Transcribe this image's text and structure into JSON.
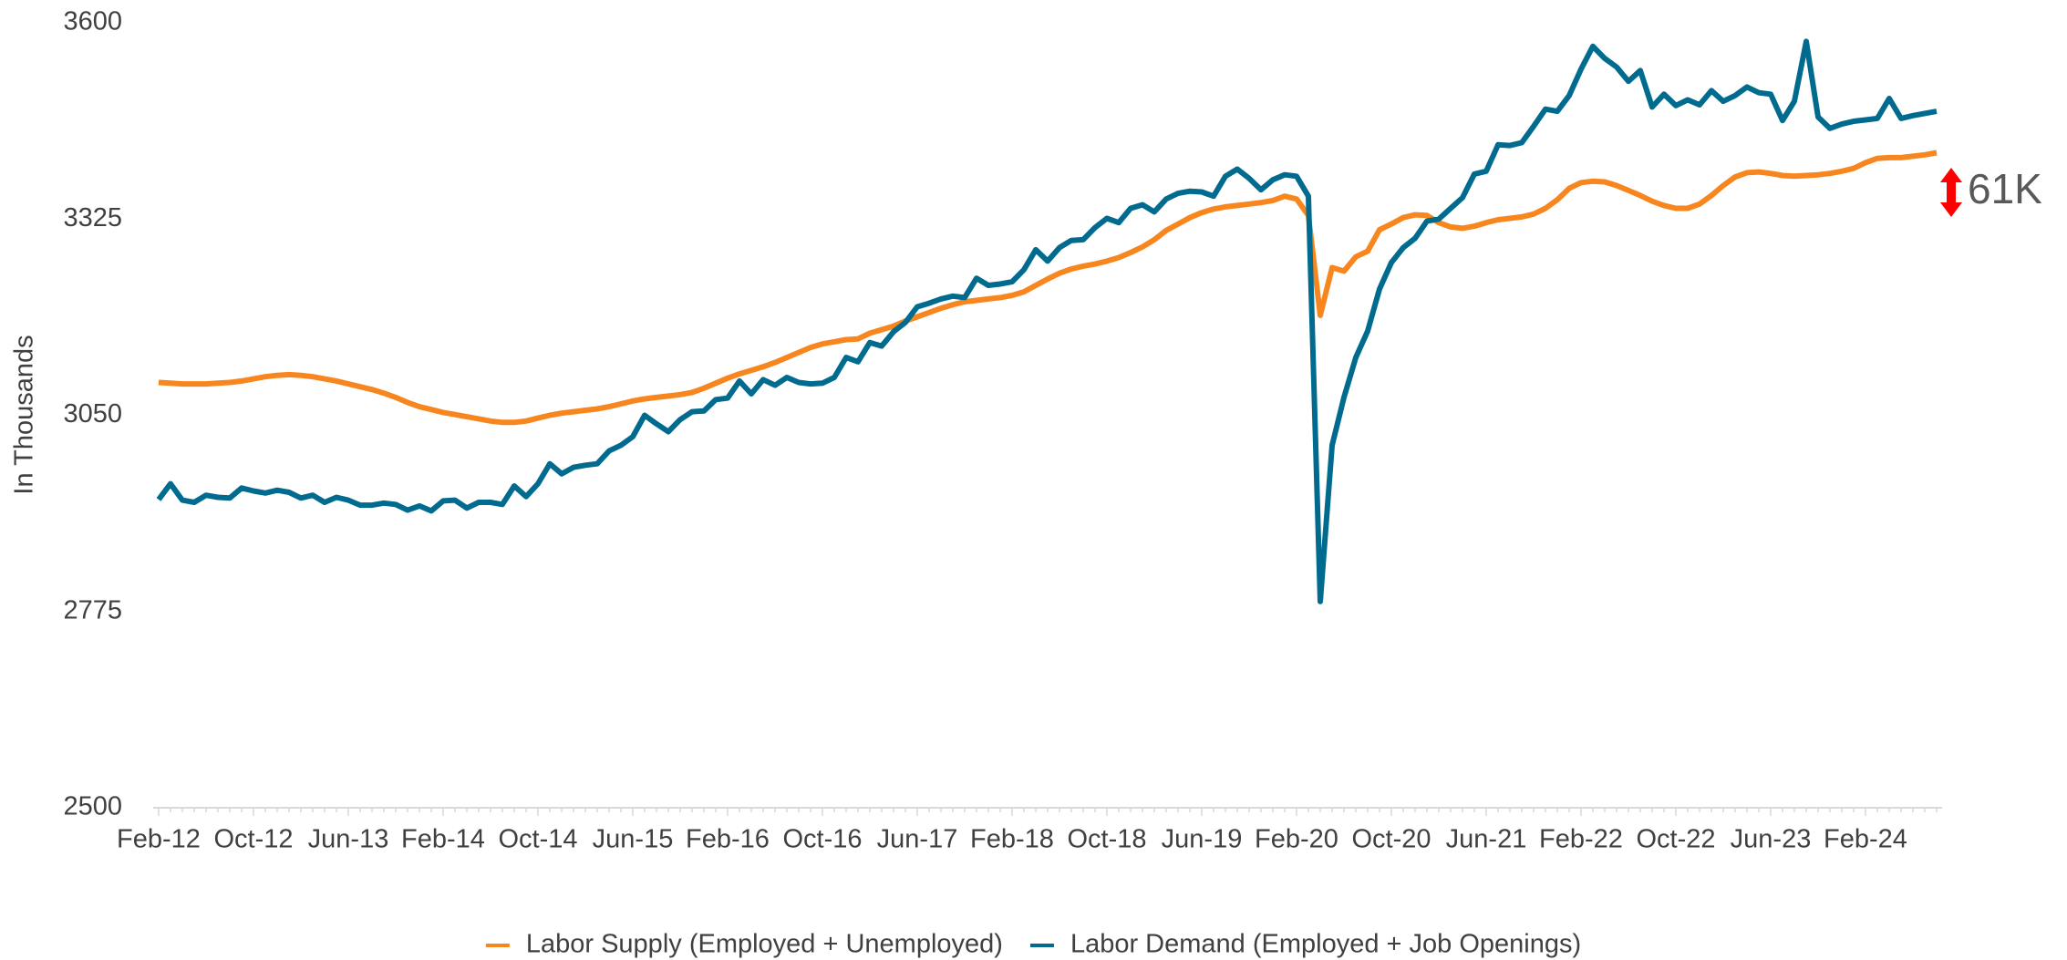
{
  "chart_data": {
    "type": "line",
    "y_label": "In Thousands",
    "categories": [
      "Feb-12",
      null,
      null,
      null,
      null,
      null,
      null,
      null,
      "Oct-12",
      null,
      null,
      null,
      null,
      null,
      null,
      null,
      "Jun-13",
      null,
      null,
      null,
      null,
      null,
      null,
      null,
      "Feb-14",
      null,
      null,
      null,
      null,
      null,
      null,
      null,
      "Oct-14",
      null,
      null,
      null,
      null,
      null,
      null,
      null,
      "Jun-15",
      null,
      null,
      null,
      null,
      null,
      null,
      null,
      "Feb-16",
      null,
      null,
      null,
      null,
      null,
      null,
      null,
      "Oct-16",
      null,
      null,
      null,
      null,
      null,
      null,
      null,
      "Jun-17",
      null,
      null,
      null,
      null,
      null,
      null,
      null,
      "Feb-18",
      null,
      null,
      null,
      null,
      null,
      null,
      null,
      "Oct-18",
      null,
      null,
      null,
      null,
      null,
      null,
      null,
      "Jun-19",
      null,
      null,
      null,
      null,
      null,
      null,
      null,
      "Feb-20",
      null,
      null,
      null,
      null,
      null,
      null,
      null,
      "Oct-20",
      null,
      null,
      null,
      null,
      null,
      null,
      null,
      "Jun-21",
      null,
      null,
      null,
      null,
      null,
      null,
      null,
      "Feb-22",
      null,
      null,
      null,
      null,
      null,
      null,
      null,
      "Oct-22",
      null,
      null,
      null,
      null,
      null,
      null,
      null,
      "Jun-23",
      null,
      null,
      null,
      null,
      null,
      null,
      null,
      "Feb-24",
      null,
      null,
      null,
      null,
      null,
      null
    ],
    "series": [
      {
        "name": "Labor Supply (Employed + Unemployed)",
        "color": "#f7861e",
        "values": [
          3096,
          3095,
          3094,
          3094,
          3094,
          3095,
          3096,
          3098,
          3101,
          3104,
          3106,
          3107,
          3106,
          3104,
          3101,
          3098,
          3094,
          3090,
          3086,
          3081,
          3075,
          3068,
          3062,
          3058,
          3054,
          3051,
          3048,
          3045,
          3042,
          3040,
          3040,
          3042,
          3046,
          3050,
          3053,
          3055,
          3057,
          3059,
          3062,
          3066,
          3070,
          3073,
          3075,
          3077,
          3079,
          3082,
          3088,
          3095,
          3102,
          3108,
          3113,
          3118,
          3124,
          3131,
          3138,
          3145,
          3150,
          3153,
          3156,
          3157,
          3165,
          3170,
          3175,
          3182,
          3188,
          3194,
          3200,
          3205,
          3209,
          3211,
          3213,
          3215,
          3218,
          3223,
          3232,
          3241,
          3249,
          3255,
          3259,
          3262,
          3266,
          3271,
          3278,
          3286,
          3296,
          3309,
          3318,
          3327,
          3334,
          3339,
          3342,
          3344,
          3346,
          3348,
          3351,
          3357,
          3353,
          3330,
          3190,
          3257,
          3252,
          3272,
          3280,
          3310,
          3318,
          3327,
          3331,
          3330,
          3320,
          3314,
          3312,
          3315,
          3320,
          3324,
          3326,
          3328,
          3332,
          3340,
          3352,
          3368,
          3376,
          3378,
          3377,
          3372,
          3365,
          3358,
          3350,
          3344,
          3340,
          3340,
          3346,
          3358,
          3372,
          3384,
          3390,
          3391,
          3389,
          3386,
          3385,
          3386,
          3387,
          3389,
          3392,
          3396,
          3404,
          3410,
          3411,
          3411,
          3413,
          3415,
          3418
        ]
      },
      {
        "name": "Labor Demand (Employed + Job Openings)",
        "color": "#006b8f",
        "values": [
          2932,
          2954,
          2931,
          2928,
          2938,
          2935,
          2934,
          2948,
          2944,
          2941,
          2945,
          2942,
          2934,
          2938,
          2928,
          2935,
          2931,
          2924,
          2924,
          2927,
          2925,
          2917,
          2923,
          2916,
          2930,
          2931,
          2920,
          2928,
          2928,
          2925,
          2951,
          2936,
          2954,
          2982,
          2968,
          2977,
          2980,
          2982,
          3000,
          3008,
          3020,
          3050,
          3038,
          3027,
          3044,
          3055,
          3056,
          3072,
          3074,
          3098,
          3080,
          3100,
          3092,
          3103,
          3096,
          3094,
          3095,
          3103,
          3131,
          3125,
          3152,
          3147,
          3167,
          3180,
          3202,
          3207,
          3213,
          3217,
          3215,
          3242,
          3232,
          3234,
          3237,
          3254,
          3282,
          3266,
          3285,
          3295,
          3296,
          3313,
          3326,
          3320,
          3340,
          3345,
          3335,
          3353,
          3361,
          3364,
          3363,
          3357,
          3385,
          3395,
          3382,
          3366,
          3380,
          3387,
          3385,
          3357,
          2789,
          3008,
          3075,
          3131,
          3168,
          3227,
          3264,
          3285,
          3298,
          3322,
          3325,
          3340,
          3355,
          3388,
          3392,
          3429,
          3428,
          3432,
          3455,
          3479,
          3476,
          3498,
          3535,
          3567,
          3550,
          3538,
          3518,
          3533,
          3482,
          3500,
          3484,
          3492,
          3485,
          3505,
          3490,
          3498,
          3510,
          3502,
          3500,
          3463,
          3490,
          3574,
          3468,
          3452,
          3458,
          3462,
          3464,
          3466,
          3494,
          3466,
          3470,
          3473,
          3476
        ]
      }
    ],
    "ylim": [
      2500,
      3600
    ],
    "yticks": [
      2500,
      2775,
      3050,
      3325,
      3600
    ],
    "annotation": "61K",
    "legend": "bottom"
  }
}
